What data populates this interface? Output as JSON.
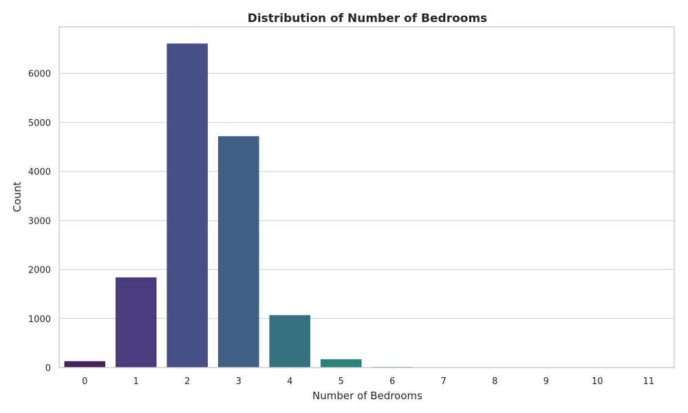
{
  "chart_data": {
    "type": "bar",
    "title": "Distribution of Number of Bedrooms",
    "xlabel": "Number of Bedrooms",
    "ylabel": "Count",
    "categories": [
      "0",
      "1",
      "2",
      "3",
      "4",
      "5",
      "6",
      "7",
      "8",
      "9",
      "10",
      "11"
    ],
    "values": [
      130,
      1840,
      6610,
      4720,
      1070,
      170,
      15,
      5,
      3,
      2,
      1,
      1
    ],
    "ylim": [
      0,
      6950
    ],
    "yticks": [
      0,
      1000,
      2000,
      3000,
      4000,
      5000,
      6000
    ],
    "grid": true,
    "colors": [
      "#45225c",
      "#4a3b7d",
      "#464f86",
      "#3e5f82",
      "#35717f",
      "#2a837a",
      "#21957a",
      "#25a677",
      "#3cb46c",
      "#5cc05d",
      "#7fcb4a",
      "#a4d436"
    ]
  }
}
